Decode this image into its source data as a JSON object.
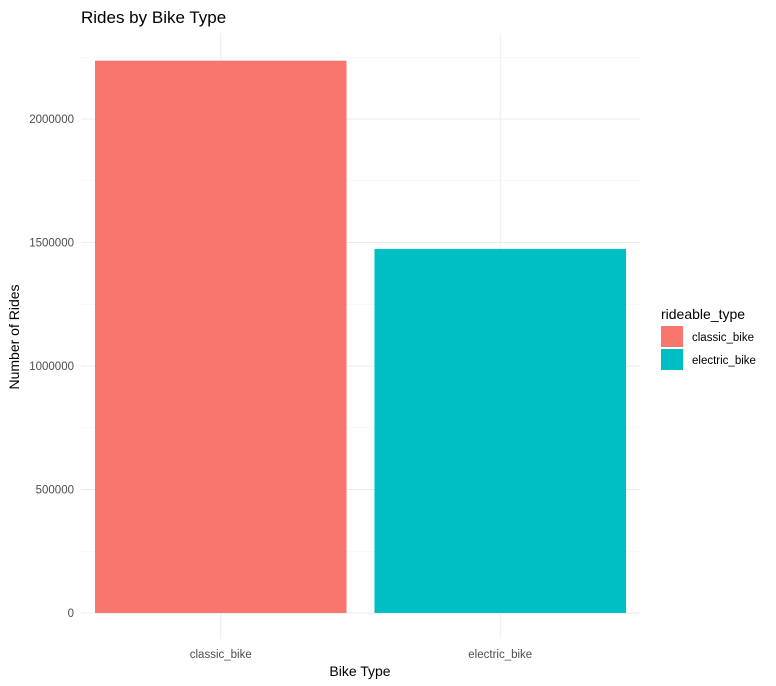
{
  "chart_data": {
    "type": "bar",
    "title": "Rides by Bike Type",
    "xlabel": "Bike Type",
    "ylabel": "Number of Rides",
    "categories": [
      "classic_bike",
      "electric_bike"
    ],
    "values": [
      2236000,
      1474000
    ],
    "ylim": [
      0,
      2350000
    ],
    "yticks": [
      0,
      500000,
      1000000,
      1500000,
      2000000
    ],
    "ytick_labels": [
      "0",
      "500000",
      "1000000",
      "1500000",
      "2000000"
    ],
    "grid": true,
    "legend": {
      "title": "rideable_type",
      "placement": "right",
      "entries": [
        "classic_bike",
        "electric_bike"
      ]
    },
    "colors": [
      "#F8766D",
      "#00BFC4"
    ]
  }
}
